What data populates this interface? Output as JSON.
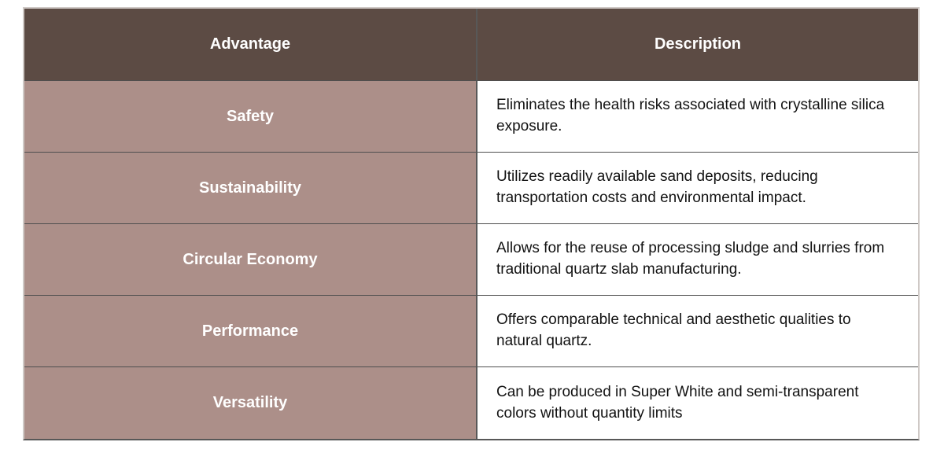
{
  "table": {
    "columns": [
      {
        "label": "Advantage"
      },
      {
        "label": "Description"
      }
    ],
    "rows": [
      {
        "advantage": "Safety",
        "description": "Eliminates the health risks associated with crystalline silica exposure."
      },
      {
        "advantage": "Sustainability",
        "description": "Utilizes readily available sand deposits, reducing transportation costs and environmental impact."
      },
      {
        "advantage": "Circular Economy",
        "description": "Allows for the reuse of processing sludge and slurries from traditional quartz slab manufacturing."
      },
      {
        "advantage": "Performance",
        "description": "Offers comparable technical and aesthetic qualities to natural quartz."
      },
      {
        "advantage": "Versatility",
        "description": "Can be produced in Super White and semi-transparent colors without quantity limits"
      }
    ],
    "colors": {
      "header_bg": "#5c4b44",
      "header_text": "#ffffff",
      "advantage_bg": "#ac8f89",
      "advantage_text": "#ffffff",
      "description_bg": "#ffffff",
      "description_text": "#121212",
      "row_divider": "#4f4f4f",
      "column_divider": "#585858",
      "outer_border": "#cfc9c6"
    }
  }
}
